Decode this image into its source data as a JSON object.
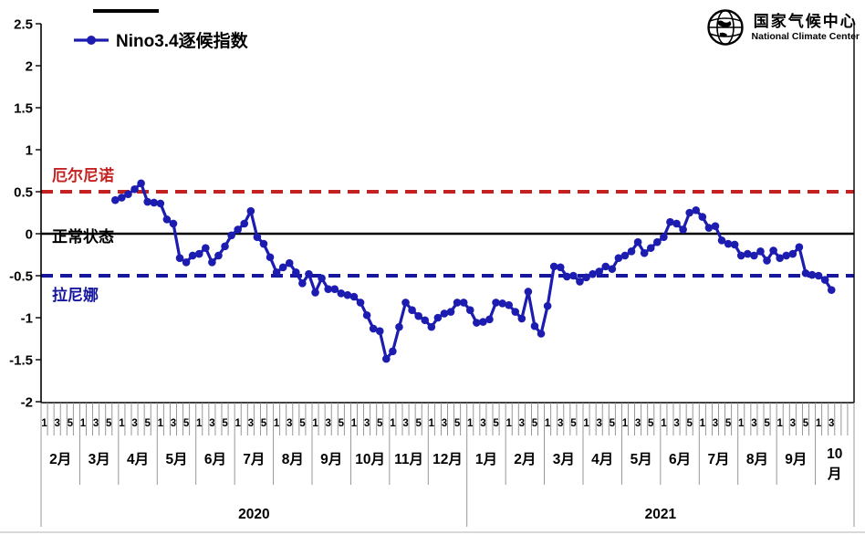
{
  "legend": {
    "label": "Nino3.4逐候指数",
    "series_color": "#1c1cb0"
  },
  "logo": {
    "title_cn": "国家气候中心",
    "title_en": "National Climate Center"
  },
  "chart_data": {
    "type": "line",
    "title": "Nino3.4逐候指数",
    "ylabel": "",
    "xlabel": "",
    "ylim": [
      -2,
      2.5
    ],
    "grid": false,
    "legend_position": "top-left",
    "y_ticks": [
      "2.5",
      "2",
      "1.5",
      "1",
      "0.5",
      "0",
      "-0.5",
      "-1",
      "-1.5",
      "-2"
    ],
    "reference_lines": [
      {
        "id": "el-nino-threshold",
        "label": "厄尔尼诺",
        "value": 0.5,
        "color": "#c42121",
        "style": "dashed"
      },
      {
        "id": "normal-state",
        "label": "正常状态",
        "value": 0,
        "color": "#000000",
        "style": "solid"
      },
      {
        "id": "la-nina-threshold",
        "label": "拉尼娜",
        "value": -0.5,
        "color": "#17179e",
        "style": "dashed"
      }
    ],
    "x_axis": {
      "unit": "候 (pentad)",
      "pentad_tick_labels": [
        "1",
        "3",
        "5"
      ],
      "years": [
        {
          "label": "2020",
          "months": [
            {
              "label": "2月"
            },
            {
              "label": "3月"
            },
            {
              "label": "4月"
            },
            {
              "label": "5月"
            },
            {
              "label": "6月"
            },
            {
              "label": "7月"
            },
            {
              "label": "8月"
            },
            {
              "label": "9月"
            },
            {
              "label": "10月"
            },
            {
              "label": "11月"
            },
            {
              "label": "12月"
            }
          ]
        },
        {
          "label": "2021",
          "months": [
            {
              "label": "1月"
            },
            {
              "label": "2月"
            },
            {
              "label": "3月"
            },
            {
              "label": "4月"
            },
            {
              "label": "5月"
            },
            {
              "label": "6月"
            },
            {
              "label": "7月"
            },
            {
              "label": "8月"
            },
            {
              "label": "9月"
            },
            {
              "label": "10月",
              "wrap": true,
              "pentad_labels": [
                "1",
                "3"
              ]
            }
          ]
        }
      ]
    },
    "series": [
      {
        "name": "Nino3.4逐候指数",
        "color": "#1c1cb0",
        "marker": "circle",
        "start_pentad_index": 11,
        "start_time": "2020年3月第6候",
        "end_time": "2021年10月第3候",
        "values": [
          0.4,
          0.43,
          0.47,
          0.53,
          0.6,
          0.38,
          0.37,
          0.36,
          0.17,
          0.12,
          -0.29,
          -0.34,
          -0.26,
          -0.24,
          -0.17,
          -0.34,
          -0.26,
          -0.15,
          -0.02,
          0.05,
          0.12,
          0.27,
          -0.04,
          -0.12,
          -0.28,
          -0.46,
          -0.4,
          -0.35,
          -0.46,
          -0.59,
          -0.48,
          -0.7,
          -0.53,
          -0.66,
          -0.66,
          -0.71,
          -0.73,
          -0.75,
          -0.82,
          -0.97,
          -1.13,
          -1.16,
          -1.49,
          -1.4,
          -1.11,
          -0.82,
          -0.91,
          -0.98,
          -1.03,
          -1.11,
          -1.0,
          -0.95,
          -0.93,
          -0.82,
          -0.82,
          -0.91,
          -1.06,
          -1.05,
          -1.02,
          -0.82,
          -0.83,
          -0.85,
          -0.93,
          -1.01,
          -0.69,
          -1.1,
          -1.19,
          -0.86,
          -0.39,
          -0.4,
          -0.51,
          -0.5,
          -0.57,
          -0.52,
          -0.48,
          -0.45,
          -0.39,
          -0.42,
          -0.29,
          -0.26,
          -0.21,
          -0.1,
          -0.23,
          -0.17,
          -0.1,
          -0.04,
          0.14,
          0.12,
          0.05,
          0.25,
          0.28,
          0.2,
          0.07,
          0.09,
          -0.08,
          -0.12,
          -0.13,
          -0.26,
          -0.24,
          -0.26,
          -0.21,
          -0.32,
          -0.2,
          -0.29,
          -0.26,
          -0.24,
          -0.16,
          -0.47,
          -0.49,
          -0.5,
          -0.55,
          -0.67
        ]
      }
    ]
  }
}
